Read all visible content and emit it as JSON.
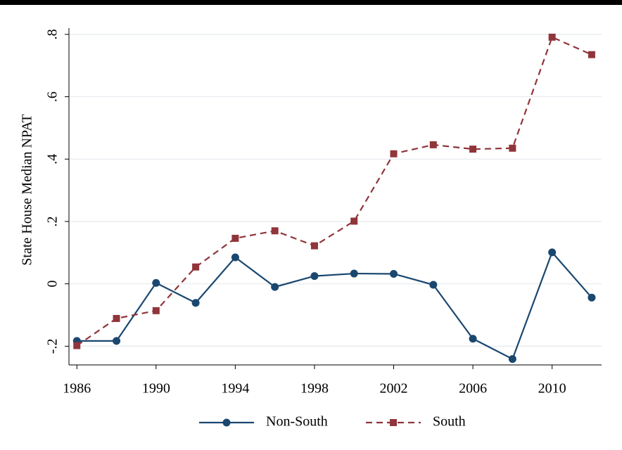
{
  "chart_data": {
    "type": "line",
    "y_label": "State House Median NPAT",
    "x": [
      1986,
      1988,
      1990,
      1992,
      1994,
      1996,
      1998,
      2000,
      2002,
      2004,
      2006,
      2008,
      2010,
      2012
    ],
    "series": [
      {
        "name": "Non-South",
        "color": "#1a476f",
        "dash": "solid",
        "marker": "circle",
        "values": [
          -0.183,
          -0.183,
          0.003,
          -0.061,
          0.085,
          -0.01,
          0.025,
          0.033,
          0.032,
          -0.003,
          -0.176,
          -0.241,
          0.101,
          -0.044
        ]
      },
      {
        "name": "South",
        "color": "#90353b",
        "dash": "dashed",
        "marker": "square",
        "values": [
          -0.198,
          -0.111,
          -0.086,
          0.054,
          0.146,
          0.17,
          0.122,
          0.201,
          0.417,
          0.446,
          0.432,
          0.435,
          0.791,
          0.735
        ]
      }
    ],
    "xlim": [
      1985.6,
      2012.5
    ],
    "xticks": [
      1986,
      1990,
      1994,
      1998,
      2002,
      2006,
      2010
    ],
    "ylim": [
      -0.26,
      0.82
    ],
    "yticks": [
      {
        "value": -0.2,
        "label": "-.2"
      },
      0,
      {
        "value": 0.2,
        "label": ".2"
      },
      {
        "value": 0.4,
        "label": ".4"
      },
      {
        "value": 0.6,
        "label": ".6"
      },
      {
        "value": 0.8,
        "label": ".8"
      }
    ],
    "grid": true
  }
}
